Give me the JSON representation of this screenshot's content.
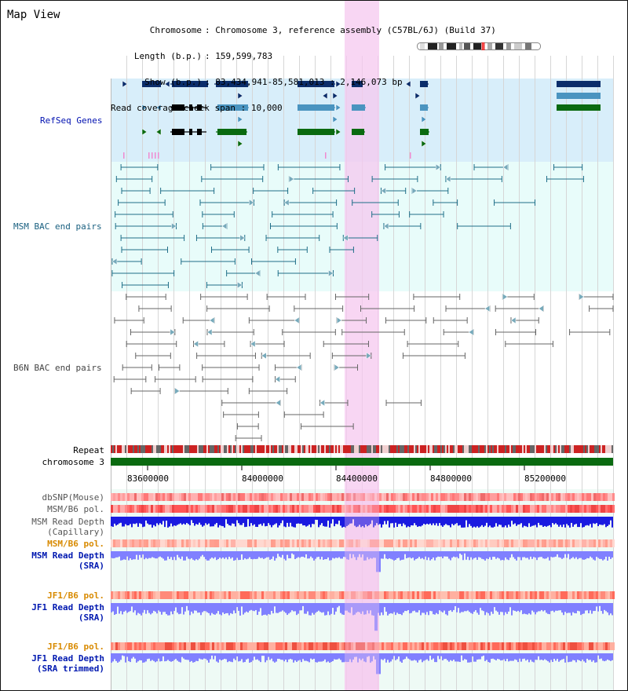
{
  "view": {
    "title": "Map View",
    "info": {
      "chromosome_key": "Chromosome",
      "chromosome_val": "Chromosome 3, reference assembly (C57BL/6J) (Build 37)",
      "length_key": "Length (b.p.)",
      "length_val": "159,599,783",
      "show_key": "Show (b.p.)",
      "show_val": "83,434,941-85,581,013 : 2,146,073 bp",
      "span_key": "Read coverage check span",
      "span_val": "10,000"
    }
  },
  "tracks": {
    "refseq": "RefSeq Genes",
    "msm_bac": "MSM BAC end pairs",
    "b6n_bac": "B6N BAC end pairs",
    "repeat": "Repeat",
    "chromosome": "chromosome 3",
    "dbsnp": "dbSNP(Mouse)",
    "msm_b6_pol_1": "MSM/B6 pol.",
    "msm_read_cap_1": "MSM Read Depth",
    "msm_read_cap_2": "(Capillary)",
    "msm_b6_pol_2": "MSM/B6 pol.",
    "msm_read_sra_1": "MSM Read Depth",
    "msm_read_sra_2": "(SRA)",
    "jf1_b6_pol_1": "JF1/B6 pol.",
    "jf1_read_sra_1": "JF1 Read Depth",
    "jf1_read_sra_2": "(SRA)",
    "jf1_b6_pol_2": "JF1/B6 pol.",
    "jf1_read_trim_1": "JF1 Read Depth",
    "jf1_read_trim_2": "(SRA trimmed)"
  },
  "axis": {
    "ticks": [
      "83600000",
      "84000000",
      "84400000",
      "84800000",
      "85200000"
    ]
  },
  "colors": {
    "refseq_bg": "#d8eefa",
    "msm_bg": "#e8fcfa",
    "gene_dark": "#0b2d6b",
    "gene_mid": "#4a94c0",
    "gene_green": "#0a6a10",
    "highlight": "#f6c8ef",
    "chromosome": "#0a6a10",
    "depth_blue": "#1a1ae0",
    "depth_light": "#8080ff"
  }
}
